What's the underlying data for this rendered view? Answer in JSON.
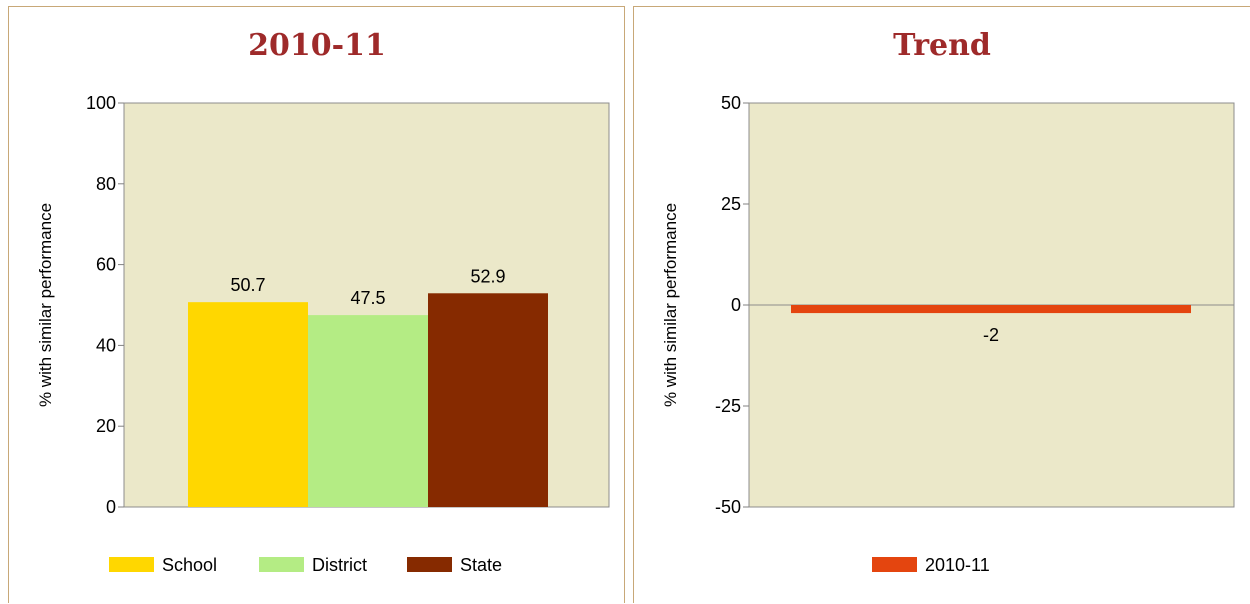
{
  "colors": {
    "plot_bg": "#ebe8c9",
    "title": "#9e2a2a",
    "school": "#ffd700",
    "district": "#b4ec84",
    "state": "#862a00",
    "trend": "#e4450f"
  },
  "chart_data": [
    {
      "type": "bar",
      "title": "2010-11",
      "ylabel": "% with similar performance",
      "xlabel": "",
      "ylim": [
        0,
        100
      ],
      "yticks": [
        0,
        20,
        40,
        60,
        80,
        100
      ],
      "ytick_labels": [
        "0",
        "20",
        "40",
        "60",
        "80",
        "100"
      ],
      "grid": false,
      "legend": "bottom",
      "series": [
        {
          "name": "School",
          "value": 50.7,
          "label": "50.7",
          "color": "#ffd700"
        },
        {
          "name": "District",
          "value": 47.5,
          "label": "47.5",
          "color": "#b4ec84"
        },
        {
          "name": "State",
          "value": 52.9,
          "label": "52.9",
          "color": "#862a00"
        }
      ]
    },
    {
      "type": "bar",
      "title": "Trend",
      "ylabel": "% with similar performance",
      "xlabel": "",
      "ylim": [
        -50,
        50
      ],
      "yticks": [
        -50,
        -25,
        0,
        25,
        50
      ],
      "ytick_labels": [
        "-50",
        "-25",
        "0",
        "25",
        "50"
      ],
      "grid": false,
      "legend": "bottom",
      "series": [
        {
          "name": "2010-11",
          "value": -2,
          "label": "-2",
          "color": "#e4450f"
        }
      ]
    }
  ]
}
